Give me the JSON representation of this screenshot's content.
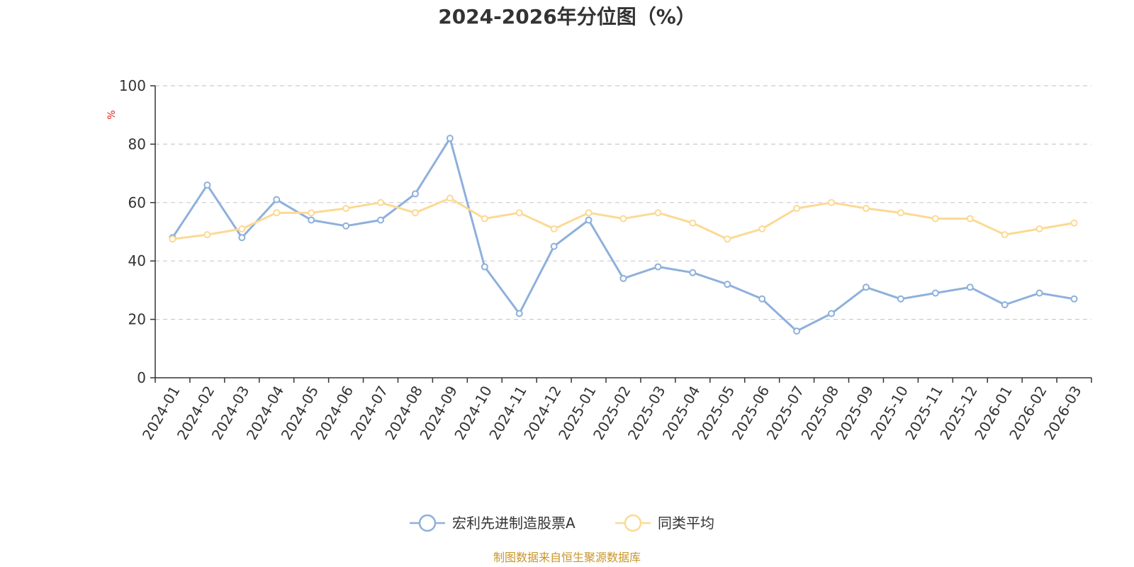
{
  "chart_data": {
    "type": "line",
    "title": "2024-2026年分位图（%）",
    "ylabel": "%",
    "ylim": [
      0,
      100
    ],
    "yticks": [
      "0",
      "20",
      "40",
      "60",
      "80",
      "100"
    ],
    "grid": true,
    "legend_position": "bottom-center",
    "categories": [
      "2024-01",
      "2024-02",
      "2024-03",
      "2024-04",
      "2024-05",
      "2024-06",
      "2024-07",
      "2024-08",
      "2024-09",
      "2024-10",
      "2024-11",
      "2024-12",
      "2025-01",
      "2025-02",
      "2025-03",
      "2025-04",
      "2025-05",
      "2025-06",
      "2025-07",
      "2025-08",
      "2025-09",
      "2025-10",
      "2025-11",
      "2025-12",
      "2026-01",
      "2026-02",
      "2026-03"
    ],
    "series": [
      {
        "name": "宏利先进制造股票A",
        "color": "#8eb0dc",
        "values": [
          48,
          66,
          48,
          61,
          54,
          52,
          54,
          63,
          82,
          38,
          22,
          45,
          54,
          34,
          38,
          36,
          32,
          27,
          16,
          22,
          31,
          27,
          29,
          31,
          25,
          29,
          27
        ]
      },
      {
        "name": "同类平均",
        "color": "#fcd994",
        "values": [
          47.5,
          49,
          51,
          56.5,
          56.5,
          58,
          60,
          56.5,
          61.5,
          54.5,
          56.5,
          51,
          56.5,
          54.5,
          56.5,
          53,
          47.5,
          51,
          58,
          60,
          58,
          56.5,
          54.5,
          54.5,
          49,
          51,
          53
        ]
      }
    ],
    "source": "制图数据来自恒生聚源数据库",
    "unit_color": "#e02020",
    "source_color": "#c8962a"
  }
}
